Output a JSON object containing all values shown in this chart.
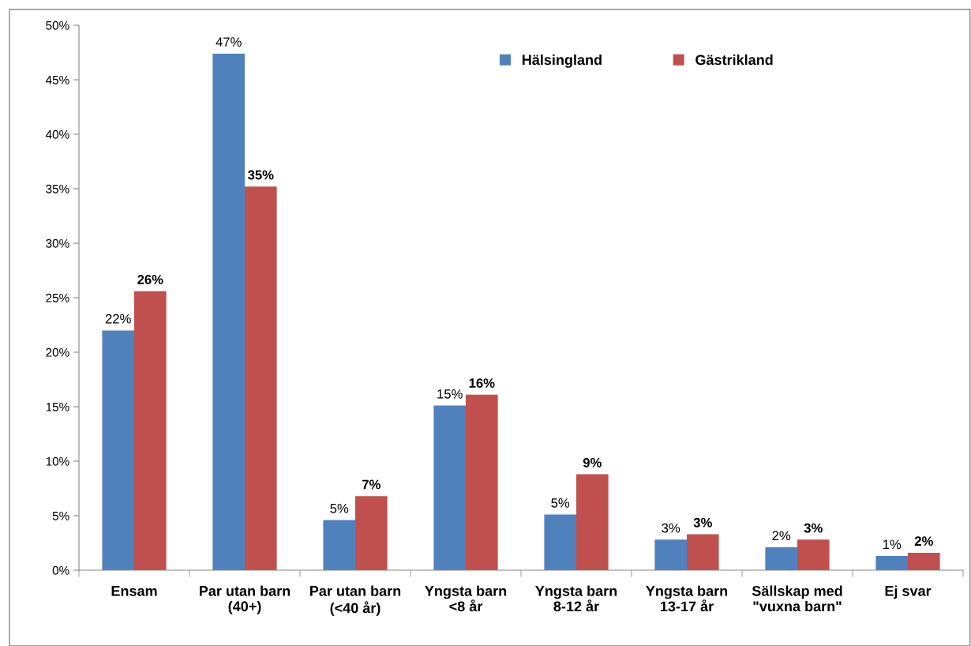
{
  "chart_data": {
    "type": "bar",
    "categories": [
      "Ensam",
      "Par utan barn\n(40+)",
      "Par utan barn\n(<40 år)",
      "Yngsta barn\n<8 år",
      "Yngsta barn\n8-12 år",
      "Yngsta barn\n13-17 år",
      "Sällskap med\n\"vuxna barn\"",
      "Ej svar"
    ],
    "series": [
      {
        "name": "Hälsingland",
        "color": "#4f81bd",
        "values": [
          22.0,
          47.4,
          4.6,
          15.1,
          5.1,
          2.8,
          2.1,
          1.3
        ],
        "value_labels": [
          "22%",
          "47%",
          "5%",
          "15%",
          "5%",
          "3%",
          "2%",
          "1%"
        ]
      },
      {
        "name": "Gästrikland",
        "color": "#c0504d",
        "values": [
          25.6,
          35.2,
          6.8,
          16.1,
          8.8,
          3.3,
          2.8,
          1.6
        ],
        "value_labels": [
          "26%",
          "35%",
          "7%",
          "16%",
          "9%",
          "3%",
          "3%",
          "2%"
        ]
      }
    ],
    "ylim": [
      0,
      50
    ],
    "yticks": [
      {
        "value": 0,
        "label": "0%"
      },
      {
        "value": 5,
        "label": "5%"
      },
      {
        "value": 10,
        "label": "10%"
      },
      {
        "value": 15,
        "label": "15%"
      },
      {
        "value": 20,
        "label": "20%"
      },
      {
        "value": 25,
        "label": "25%"
      },
      {
        "value": 30,
        "label": "30%"
      },
      {
        "value": 35,
        "label": "35%"
      },
      {
        "value": 40,
        "label": "40%"
      },
      {
        "value": 45,
        "label": "45%"
      },
      {
        "value": 50,
        "label": "50%"
      }
    ],
    "grid": false,
    "legend": "top right"
  }
}
